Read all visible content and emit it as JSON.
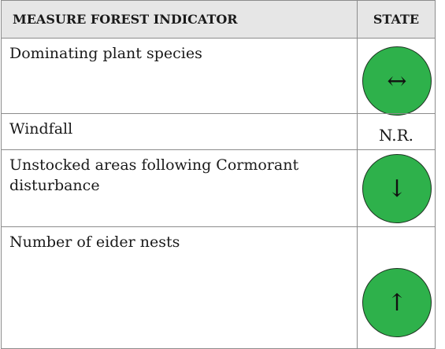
{
  "table": {
    "header": [
      "MEASURE FOREST INDICATOR",
      "STATE"
    ],
    "rows": [
      [
        "Dominating plant species",
        "↔"
      ],
      [
        "Windfall",
        "N.R."
      ],
      [
        "Unstocked areas following Cormorant disturbance",
        "↓"
      ],
      [
        "Number of eider nests",
        "↑"
      ]
    ]
  }
}
